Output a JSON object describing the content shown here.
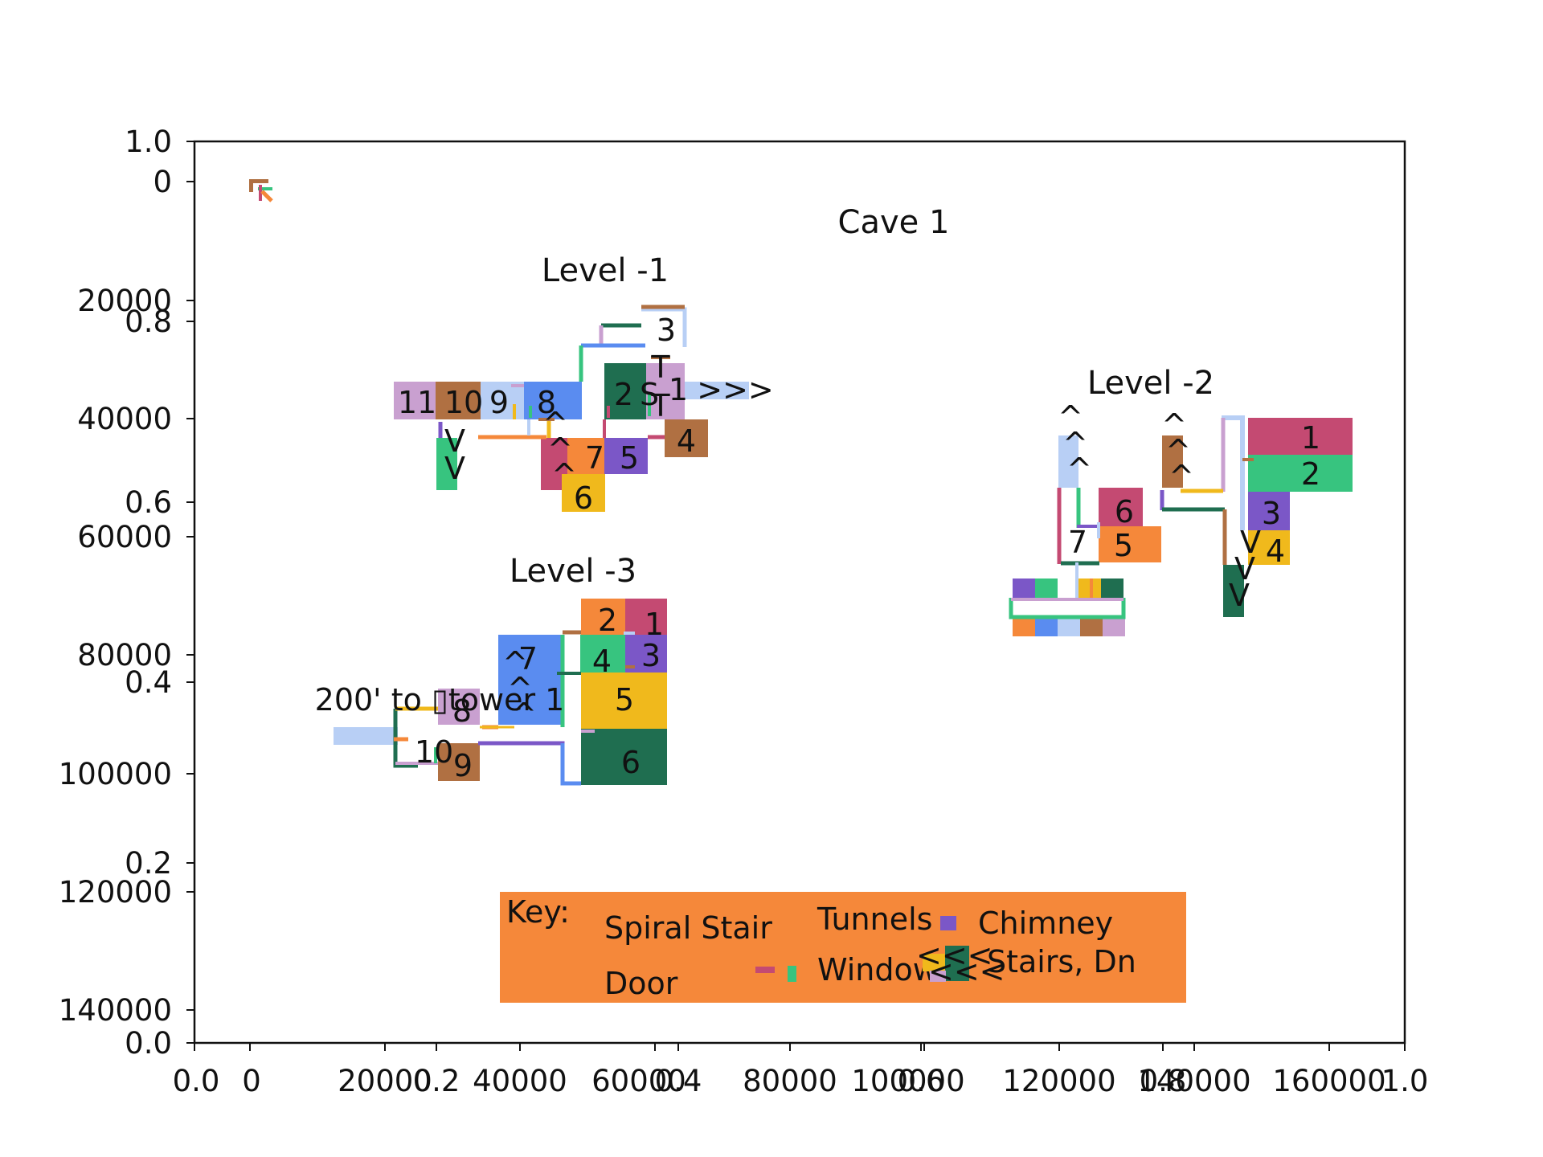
{
  "title": "Cave 1",
  "level_labels": {
    "l1": "Level -1",
    "l2": "Level -2",
    "l3": "Level -3"
  },
  "axes": {
    "left_outer_ticks": [
      "1.0",
      "0.8",
      "0.6",
      "0.4",
      "0.2",
      "0.0"
    ],
    "left_inner_ticks": [
      "0",
      "20000",
      "40000",
      "60000",
      "80000",
      "100000",
      "120000",
      "140000"
    ],
    "bottom_outer_ticks": [
      "0.0",
      "0.2",
      "0.4",
      "0.6",
      "0.8",
      "1.0"
    ],
    "bottom_inner_ticks": [
      "0",
      "20000",
      "40000",
      "60000",
      "80000",
      "100000",
      "120000",
      "140000",
      "160000"
    ]
  },
  "rooms": {
    "level1": [
      "11",
      "10",
      "9",
      "8",
      "2",
      "S",
      "T",
      "3",
      "T",
      "1",
      "4",
      "7",
      "5",
      "6"
    ],
    "level2": [
      "1",
      "2",
      "3",
      "4",
      "5",
      "6",
      "7"
    ],
    "level3": [
      "2",
      "1",
      "7",
      "4",
      "3",
      "5",
      "8",
      "10",
      "9",
      "6"
    ]
  },
  "annotations": {
    "exit_arrow": ">>>",
    "tower_note": "200' to ▯tower 1",
    "stairs_up": "^",
    "stairs_down": "V"
  },
  "key": {
    "title": "Key:",
    "spiral_stair": "Spiral Stair",
    "tunnels": "Tunnels",
    "chimney": "Chimney",
    "door": "Door",
    "window": "Window",
    "stairs_dn": "Stairs, Dn",
    "stairs_symbol": "<<<"
  },
  "colors": {
    "pink": "#c9a0d0",
    "brown": "#b07042",
    "lightblue": "#b8cff5",
    "blue": "#5a8cf0",
    "darkgreen": "#1f6e50",
    "green": "#37c47f",
    "orange": "#f5883a",
    "purple": "#7b57c7",
    "crimson": "#c44a72",
    "gold": "#f0b91c",
    "key_bg": "#f5883a"
  }
}
